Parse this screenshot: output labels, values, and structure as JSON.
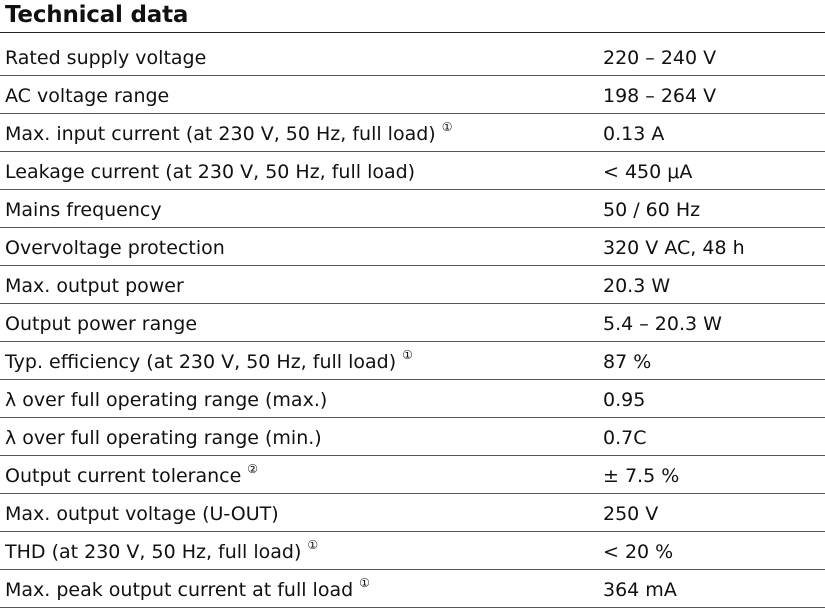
{
  "heading": "Technical data",
  "rows": [
    {
      "label": "Rated supply voltage",
      "note": "",
      "value": "220 – 240 V"
    },
    {
      "label": "AC voltage range",
      "note": "",
      "value": "198 – 264 V"
    },
    {
      "label": "Max. input current (at 230 V, 50 Hz, full load)",
      "note": "①",
      "value": "0.13 A"
    },
    {
      "label": "Leakage current (at 230 V, 50 Hz, full load)",
      "note": "",
      "value": "< 450 μA"
    },
    {
      "label": "Mains frequency",
      "note": "",
      "value": "50 / 60 Hz"
    },
    {
      "label": "Overvoltage protection",
      "note": "",
      "value": "320 V AC, 48 h"
    },
    {
      "label": "Max. output power",
      "note": "",
      "value": "20.3 W"
    },
    {
      "label": "Output power range",
      "note": "",
      "value": "5.4 – 20.3 W"
    },
    {
      "label": "Typ. efficiency (at 230 V, 50 Hz, full load)",
      "note": "①",
      "value": "87 %"
    },
    {
      "label": "λ over full operating range (max.)",
      "note": "",
      "value": "0.95"
    },
    {
      "label": "λ over full operating range (min.)",
      "note": "",
      "value": "0.7C"
    },
    {
      "label": "Output current tolerance",
      "note": "②",
      "value": "± 7.5 %"
    },
    {
      "label": "Max. output voltage (U-OUT)",
      "note": "",
      "value": "250 V"
    },
    {
      "label": "THD (at 230 V, 50 Hz, full load)",
      "note": "①",
      "value": "< 20 %"
    },
    {
      "label": "Max. peak output current at full load",
      "note": "①",
      "value": "364 mA"
    }
  ]
}
